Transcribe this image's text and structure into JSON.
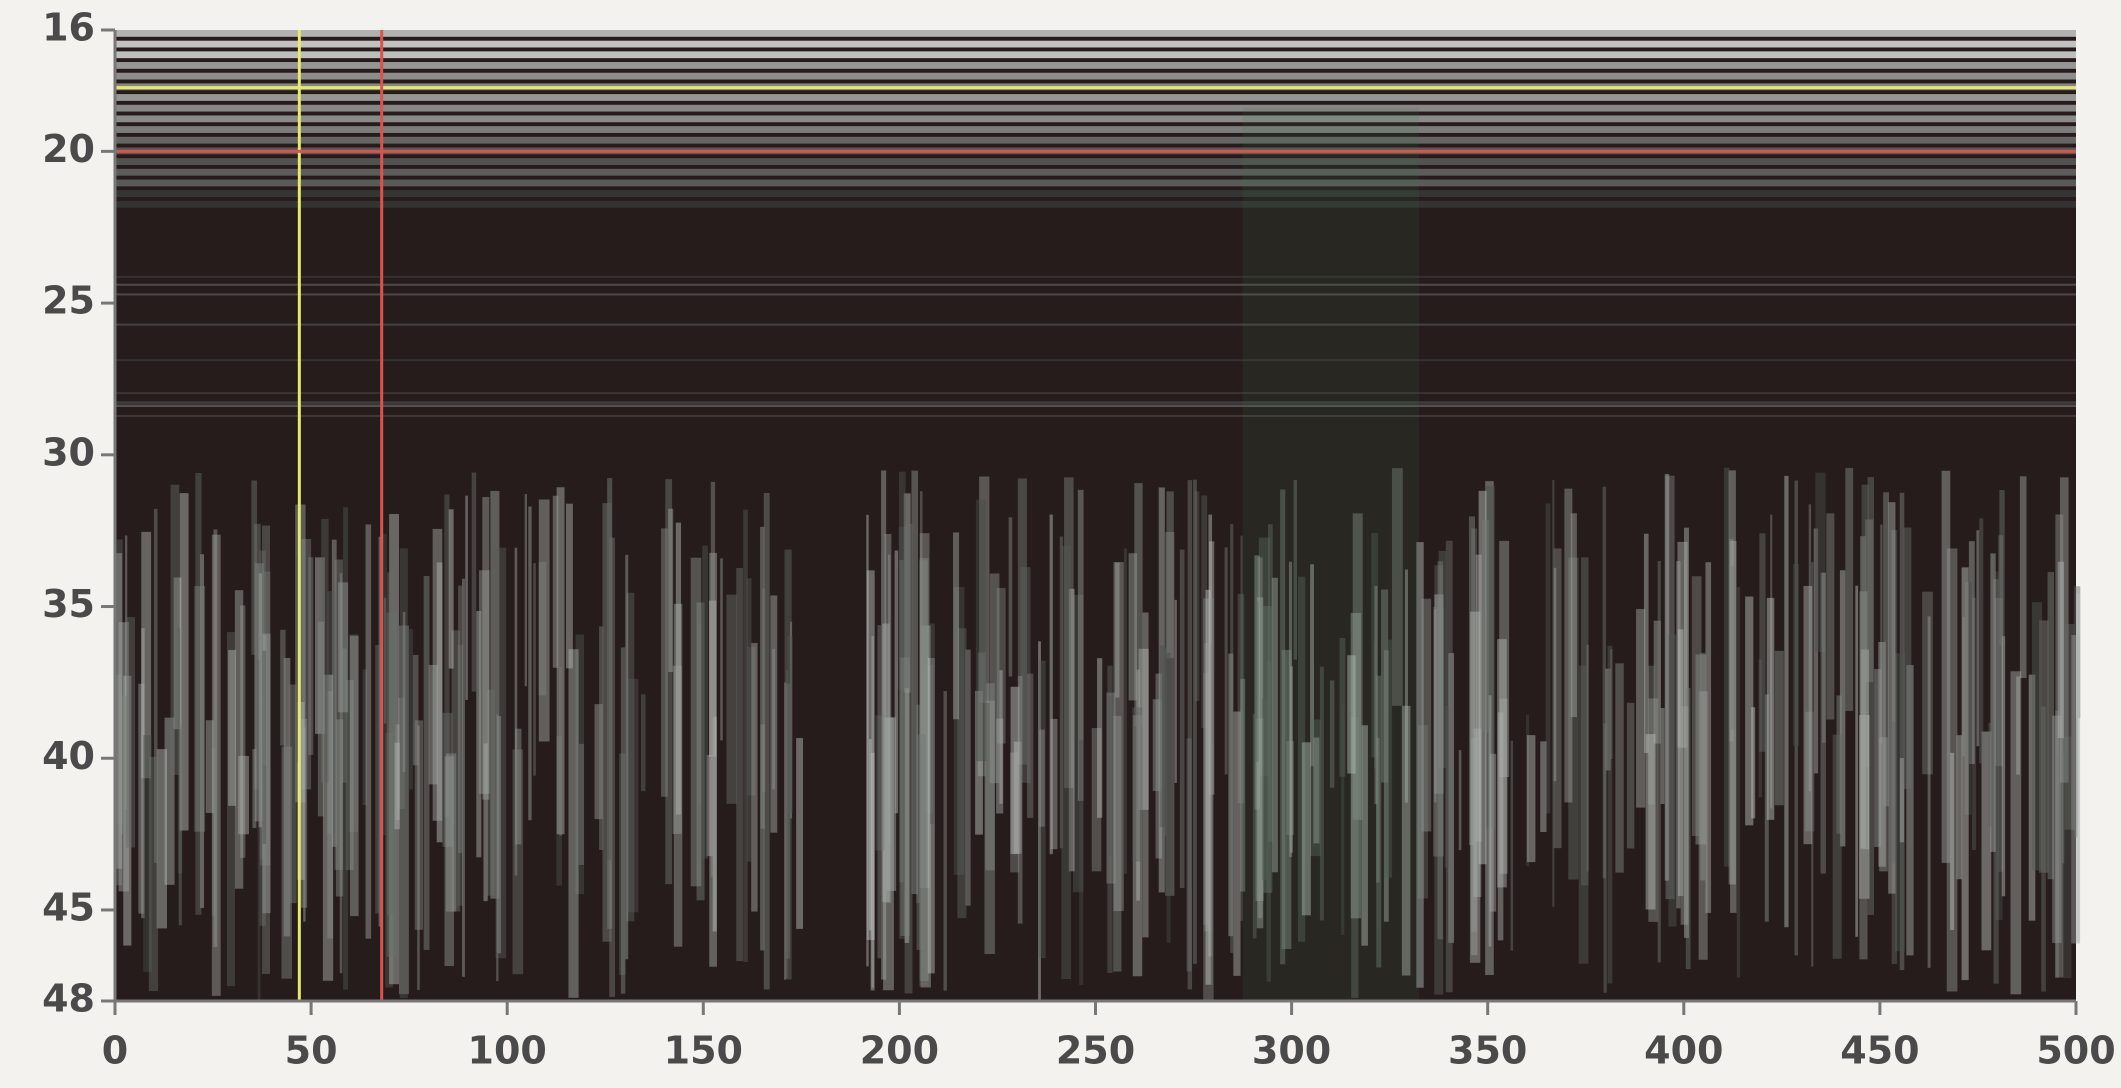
{
  "chart_data": {
    "type": "image",
    "xlim": [
      0,
      500
    ],
    "xticks": [
      0,
      50,
      100,
      150,
      200,
      250,
      300,
      350,
      400,
      450,
      500
    ],
    "ylim": [
      16,
      48
    ],
    "yticks": [
      16,
      20,
      25,
      30,
      35,
      40,
      45,
      48
    ],
    "y_inverted": true,
    "cursors": [
      {
        "color": "#e6ea6a",
        "x": 47,
        "y": 17.9
      },
      {
        "color": "#d9534f",
        "x": 68,
        "y": 20
      }
    ]
  }
}
